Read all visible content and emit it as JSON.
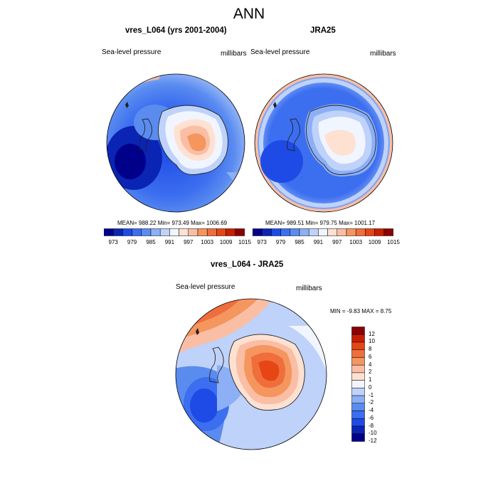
{
  "figure": {
    "title": "ANN"
  },
  "panels": [
    {
      "title": "vres_L064 (yrs 2001-2004)",
      "left_label": "Sea-level pressure",
      "right_label": "millibars",
      "stats": "MEAN= 988.22   Min= 973.49   Max= 1006.69"
    },
    {
      "title": "JRA25",
      "left_label": "Sea-level pressure",
      "right_label": "millibars",
      "stats": "MEAN= 989.51   Min= 979.75   Max= 1001.17"
    },
    {
      "title": "vres_L064 - JRA25",
      "left_label": "Sea-level pressure",
      "right_label": "millibars",
      "stats": "MIN =  -9.83 MAX =   8.75"
    }
  ],
  "abs_colorbar": {
    "colors": [
      "#00008b",
      "#0a24b4",
      "#1e4be6",
      "#3c6ef0",
      "#5a8cf0",
      "#8caff5",
      "#bed2fa",
      "#f0f5ff",
      "#ffe1d2",
      "#fabea5",
      "#f5965f",
      "#f06e3c",
      "#e64614",
      "#c81e00",
      "#8b0000"
    ],
    "tick_labels": [
      "973",
      "979",
      "985",
      "991",
      "997",
      "1003",
      "1009",
      "1015"
    ]
  },
  "diff_colorbar": {
    "colors_top_to_bottom": [
      "#8b0000",
      "#c81e00",
      "#e64614",
      "#f06e3c",
      "#f5965f",
      "#fabea5",
      "#ffe1d2",
      "#f0f5ff",
      "#bed2fa",
      "#8caff5",
      "#5a8cf0",
      "#3c6ef0",
      "#1e4be6",
      "#0a24b4",
      "#00008b"
    ],
    "tick_labels_top_to_bottom": [
      "12",
      "10",
      "8",
      "6",
      "4",
      "2",
      "1",
      "0",
      "-1",
      "-2",
      "-4",
      "-6",
      "-8",
      "-10",
      "-12"
    ]
  }
}
